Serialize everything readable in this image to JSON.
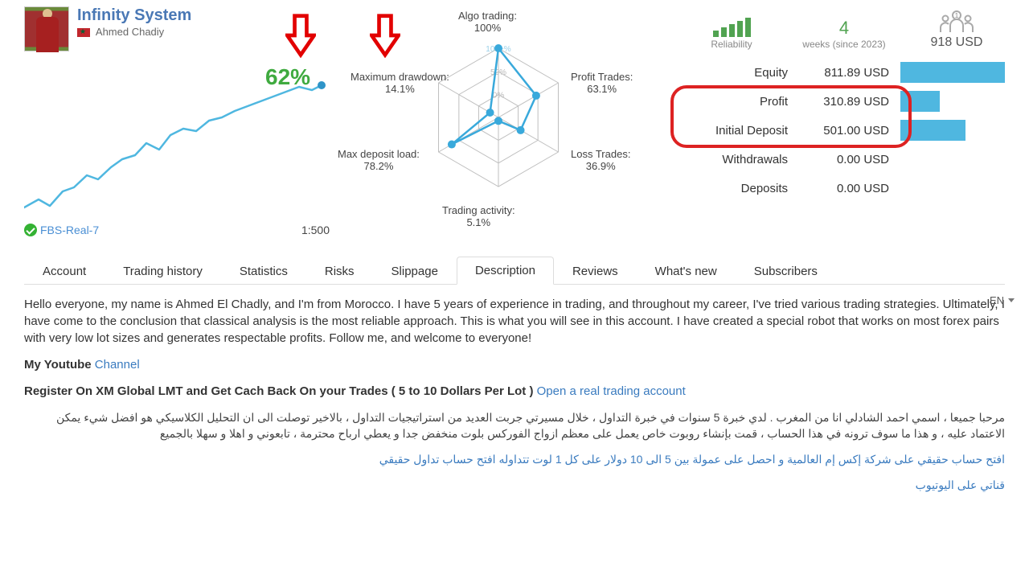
{
  "profile": {
    "system_name": "Infinity System",
    "author": "Ahmed Chadiy",
    "growth_pct": "62%",
    "broker": "FBS-Real-7",
    "leverage": "1:500"
  },
  "growth_line": {
    "color": "#4fb7e0",
    "dot_color": "#2e94c8",
    "points": [
      [
        0,
        160
      ],
      [
        18,
        150
      ],
      [
        32,
        158
      ],
      [
        48,
        140
      ],
      [
        62,
        135
      ],
      [
        78,
        120
      ],
      [
        92,
        125
      ],
      [
        108,
        110
      ],
      [
        122,
        100
      ],
      [
        138,
        95
      ],
      [
        152,
        80
      ],
      [
        168,
        88
      ],
      [
        182,
        70
      ],
      [
        198,
        62
      ],
      [
        214,
        65
      ],
      [
        230,
        52
      ],
      [
        246,
        48
      ],
      [
        262,
        40
      ],
      [
        278,
        34
      ],
      [
        294,
        28
      ],
      [
        310,
        22
      ],
      [
        326,
        16
      ],
      [
        342,
        10
      ],
      [
        358,
        14
      ],
      [
        370,
        8
      ]
    ]
  },
  "radar": {
    "ring_color": "#bfbfbf",
    "line_color": "#39a9db",
    "dot_color": "#39a9db",
    "rings_labels": [
      "100+%",
      "50%",
      "0%"
    ],
    "axes": [
      {
        "key": "algo",
        "label": "Algo trading:",
        "value": "100%",
        "v": 1.0
      },
      {
        "key": "profit",
        "label": "Profit Trades:",
        "value": "63.1%",
        "v": 0.63
      },
      {
        "key": "loss",
        "label": "Loss Trades:",
        "value": "36.9%",
        "v": 0.37
      },
      {
        "key": "act",
        "label": "Trading activity:",
        "value": "5.1%",
        "v": 0.05
      },
      {
        "key": "load",
        "label": "Max deposit load:",
        "value": "78.2%",
        "v": 0.78
      },
      {
        "key": "dd",
        "label": "Maximum drawdown:",
        "value": "14.1%",
        "v": 0.14
      }
    ]
  },
  "mini": {
    "reliability_label": "Reliability",
    "reliability_bars": [
      8,
      12,
      16,
      20,
      24
    ],
    "weeks_value": "4",
    "weeks_label": "weeks (since 2023)",
    "subs_value": "918 USD",
    "subs_badge": "1"
  },
  "finance": {
    "rows": [
      {
        "label": "Equity",
        "value": "811.89 USD",
        "bar": 1.0
      },
      {
        "label": "Profit",
        "value": "310.89 USD",
        "bar": 0.38
      },
      {
        "label": "Initial Deposit",
        "value": "501.00 USD",
        "bar": 0.62
      },
      {
        "label": "Withdrawals",
        "value": "0.00 USD",
        "bar": 0.0
      },
      {
        "label": "Deposits",
        "value": "0.00 USD",
        "bar": 0.0
      }
    ],
    "bar_color": "#4fb7e0"
  },
  "annotations": {
    "arrow_color": "#e20000",
    "ring_color": "#d22"
  },
  "tabs": {
    "items": [
      "Account",
      "Trading history",
      "Statistics",
      "Risks",
      "Slippage",
      "Description",
      "Reviews",
      "What's new",
      "Subscribers"
    ],
    "active": 5
  },
  "lang": "EN",
  "description": {
    "p1": "Hello everyone, my name is Ahmed El Chadly, and I'm from Morocco. I have 5 years of experience in trading, and throughout my career, I've tried various trading strategies. Ultimately, I have come to the conclusion that classical analysis is the most reliable approach. This is what you will see in this account. I have created a special robot that works on most forex pairs with very low lot sizes and generates respectable profits. Follow me, and welcome to everyone!",
    "p2_pre": "My Youtube ",
    "p2_link": "Channel",
    "p3_pre": "Register On XM Global LMT and Get Cach Back On your Trades ( 5 to 10 Dollars Per Lot ) ",
    "p3_link": "Open a real trading account",
    "ar1": "مرحبا جميعا ، اسمي احمد الشادلي انا من المغرب . لدي خبرة 5 سنوات في خبرة التداول ، خلال مسيرتي جربت العديد من استراتيجيات التداول ، بالاخير توصلت الى ان التحليل الكلاسيكي هو افضل شيء يمكن الاعتماد عليه ، و هذا ما سوف ترونه في هذا الحساب ، قمت بإنشاء روبوت خاص يعمل على معظم ازواج الفوركس بلوت منخفض جدا و يعطي ارباح محترمة ، تابعوني و اهلا و سهلا بالجميع",
    "ar2a": "افتح حساب حقيقي على شركة إكس إم العالمية و احصل على عمولة بين 5 الى 10 دولار على كل 1 لوت تتداوله ",
    "ar2b": "افتح حساب تداول حقيقي",
    "ar3": "قناتي على اليوتيوب"
  }
}
